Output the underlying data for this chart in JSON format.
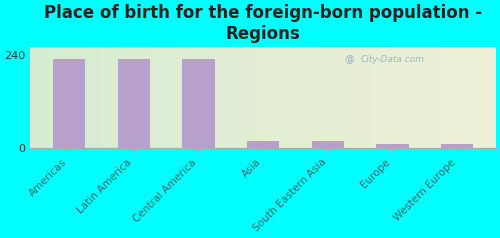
{
  "title": "Place of birth for the foreign-born population -\nRegions",
  "categories": [
    "Americas",
    "Latin America",
    "Central America",
    "Asia",
    "South Eastern Asia",
    "Europe",
    "Western Europe"
  ],
  "values": [
    230,
    230,
    230,
    17,
    17,
    10,
    10
  ],
  "bar_color": "#b8a0cc",
  "background_color": "#00ffff",
  "plot_bg_left": "#d6ecd2",
  "plot_bg_right": "#f0f0d8",
  "ylim": [
    0,
    260
  ],
  "yticks": [
    0,
    240
  ],
  "title_fontsize": 12,
  "title_color": "#222222",
  "tick_label_fontsize": 7.5,
  "tick_label_color": "#336666",
  "ytick_fontsize": 8,
  "ytick_color": "#333333",
  "watermark": "City-Data.com",
  "bar_width": 0.5
}
